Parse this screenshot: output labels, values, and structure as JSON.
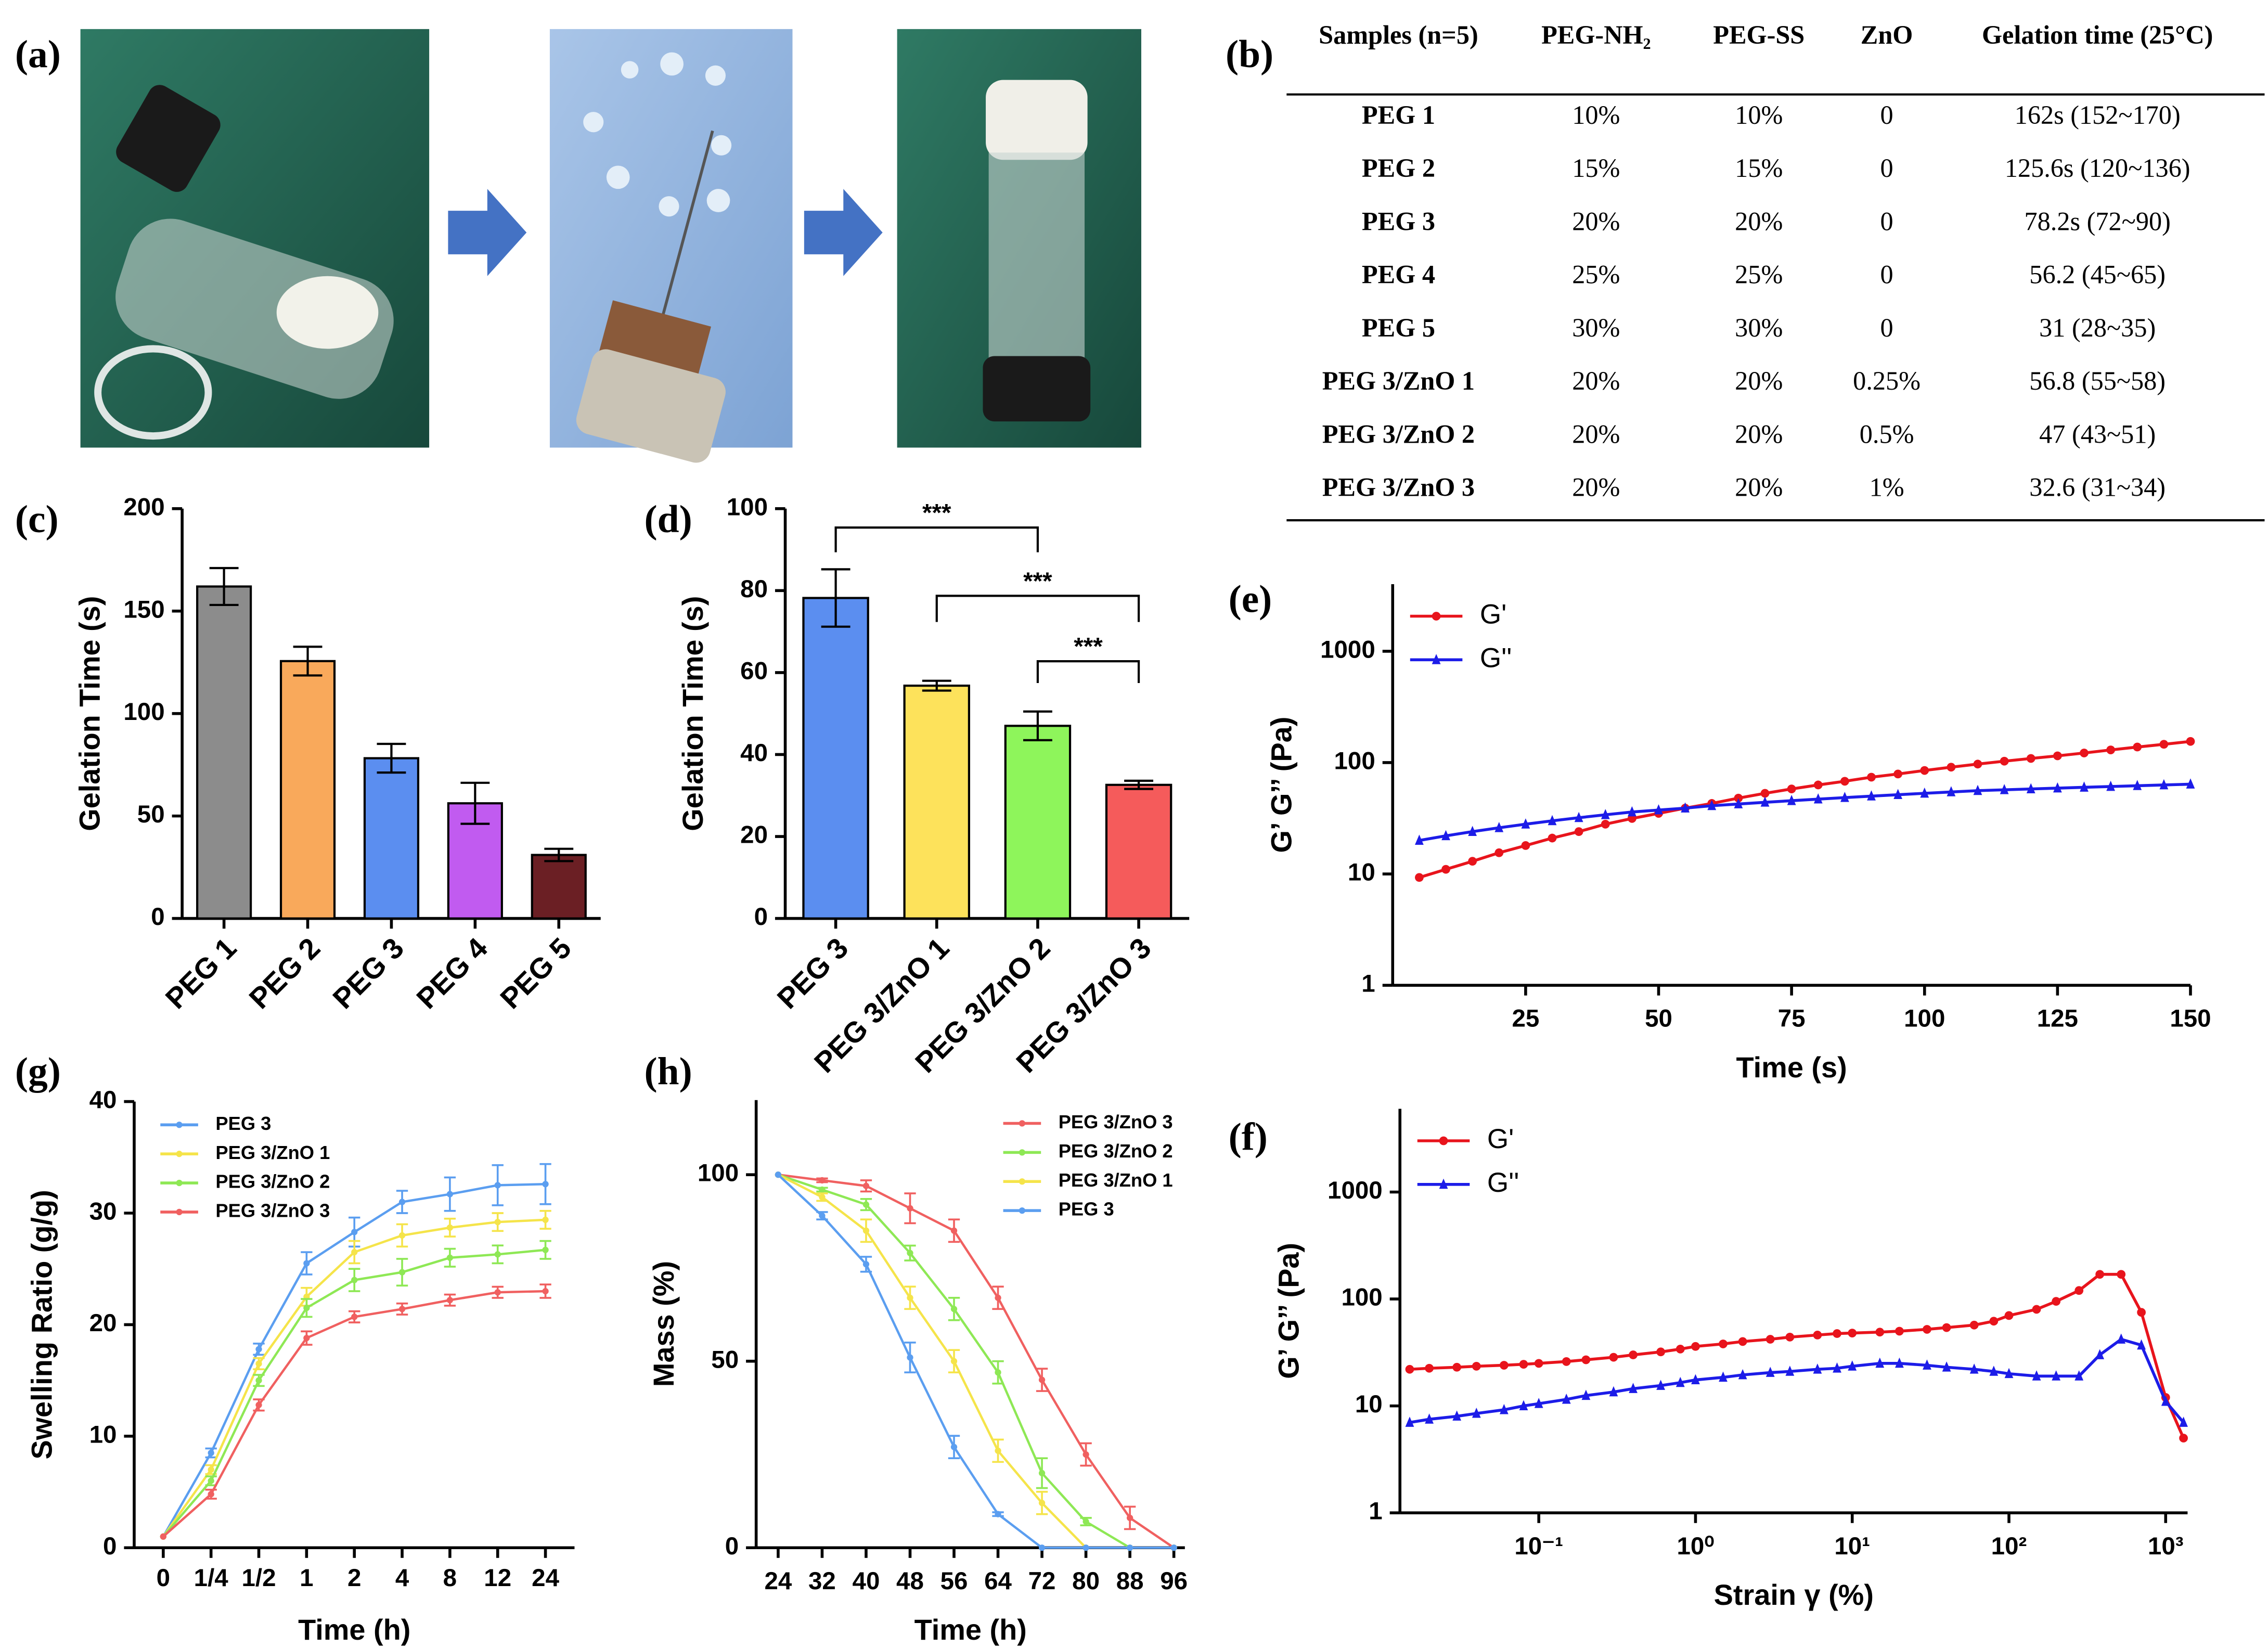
{
  "panel_labels": [
    "(a)",
    "(b)",
    "(c)",
    "(d)",
    "(e)",
    "(f)",
    "(g)",
    "(h)"
  ],
  "table": {
    "header": [
      "Samples (n=5)",
      "PEG-NH₂",
      "PEG-SS",
      "ZnO",
      "Gelation time (25°C)"
    ],
    "rows": [
      [
        "PEG 1",
        "10%",
        "10%",
        "0",
        "162s (152~170)"
      ],
      [
        "PEG 2",
        "15%",
        "15%",
        "0",
        "125.6s (120~136)"
      ],
      [
        "PEG 3",
        "20%",
        "20%",
        "0",
        "78.2s (72~90)"
      ],
      [
        "PEG 4",
        "25%",
        "25%",
        "0",
        "56.2 (45~65)"
      ],
      [
        "PEG 5",
        "30%",
        "30%",
        "0",
        "31 (28~35)"
      ],
      [
        "PEG 3/ZnO 1",
        "20%",
        "20%",
        "0.25%",
        "56.8 (55~58)"
      ],
      [
        "PEG 3/ZnO 2",
        "20%",
        "20%",
        "0.5%",
        "47 (43~51)"
      ],
      [
        "PEG 3/ZnO 3",
        "20%",
        "20%",
        "1%",
        "32.6 (31~34)"
      ]
    ]
  },
  "chart_data": [
    {
      "type": "bar",
      "ylabel": "Gelation Time (s)",
      "categories": [
        "PEG 1",
        "PEG 2",
        "PEG 3",
        "PEG 4",
        "PEG 5"
      ],
      "values": [
        162,
        125.6,
        78.2,
        56.2,
        31
      ],
      "errors": [
        9,
        7,
        7,
        10,
        3
      ],
      "colors": [
        "#8c8c8c",
        "#f9a95b",
        "#5b8ef0",
        "#c15bf0",
        "#6b1f24"
      ],
      "ylim": [
        0,
        200
      ],
      "yticks": [
        0,
        50,
        100,
        150,
        200
      ]
    },
    {
      "type": "bar",
      "ylabel": "Gelation Time (s)",
      "categories": [
        "PEG 3",
        "PEG 3/ZnO 1",
        "PEG 3/ZnO 2",
        "PEG 3/ZnO 3"
      ],
      "values": [
        78.2,
        56.8,
        47,
        32.6
      ],
      "errors": [
        7,
        1.2,
        3.5,
        1
      ],
      "colors": [
        "#5b8ef0",
        "#fde25b",
        "#8ef55b",
        "#f55b5b"
      ],
      "ylim": [
        0,
        100
      ],
      "yticks": [
        0,
        20,
        40,
        60,
        80,
        100
      ],
      "annotations": [
        "***",
        "***",
        "***"
      ]
    },
    {
      "type": "line",
      "xlabel": "Time (s)",
      "ylabel": "G’ G’’ (Pa)",
      "yscale": "log",
      "legend": "upper left",
      "x": [
        5,
        10,
        15,
        20,
        25,
        30,
        35,
        40,
        45,
        50,
        55,
        60,
        65,
        70,
        75,
        80,
        85,
        90,
        95,
        100,
        105,
        110,
        115,
        120,
        125,
        130,
        135,
        140,
        145,
        150
      ],
      "xlim": [
        0,
        150
      ],
      "xticks": [
        25,
        50,
        75,
        100,
        125,
        150
      ],
      "ylim": [
        1,
        4000
      ],
      "yticks": [
        1,
        10,
        100,
        1000
      ],
      "series": [
        {
          "name": "G'",
          "color": "#e8141c",
          "marker": "circle",
          "values": [
            9.3,
            11,
            13,
            15.5,
            18,
            21,
            24,
            28,
            31.5,
            35,
            39,
            43,
            48,
            53,
            58,
            63,
            68,
            74,
            79,
            85,
            91,
            97,
            103,
            109,
            115,
            122,
            130,
            138,
            146,
            155
          ]
        },
        {
          "name": "G''",
          "color": "#1c1ce8",
          "marker": "triangle",
          "values": [
            20,
            22,
            24,
            26,
            28,
            30,
            32,
            34,
            36,
            37.5,
            39,
            41,
            42.5,
            44,
            45.5,
            47,
            48.5,
            50,
            51.5,
            53,
            54.5,
            56,
            57,
            58,
            59,
            60,
            61,
            62,
            63,
            64
          ]
        }
      ]
    },
    {
      "type": "line",
      "xlabel": "Strain γ (%)",
      "ylabel": "G’ G’’ (Pa)",
      "xscale": "log",
      "yscale": "log",
      "legend": "upper left",
      "x": [
        0.015,
        0.02,
        0.03,
        0.04,
        0.06,
        0.08,
        0.1,
        0.15,
        0.2,
        0.3,
        0.4,
        0.6,
        0.8,
        1,
        1.5,
        2,
        3,
        4,
        6,
        8,
        10,
        15,
        20,
        30,
        40,
        60,
        80,
        100,
        150,
        200,
        280,
        380,
        520,
        700,
        1000,
        1300
      ],
      "xlim": [
        0.013,
        1380
      ],
      "xticks": [
        {
          "value": 0.1,
          "label": "10⁻¹"
        },
        {
          "value": 1,
          "label": "10⁰"
        },
        {
          "value": 10,
          "label": "10¹"
        },
        {
          "value": 100,
          "label": "10²"
        },
        {
          "value": 1000,
          "label": "10³"
        }
      ],
      "ylim": [
        1,
        6000
      ],
      "yticks": [
        1,
        10,
        100,
        1000
      ],
      "series": [
        {
          "name": "G'",
          "color": "#e8141c",
          "marker": "circle",
          "values": [
            22,
            22.5,
            23,
            23.5,
            24,
            24.5,
            25,
            26,
            27,
            28.5,
            30,
            32,
            34,
            36,
            38,
            40,
            42,
            44,
            46,
            47.5,
            48,
            49,
            50,
            52,
            54,
            57,
            62,
            70,
            80,
            95,
            120,
            170,
            170,
            75,
            12,
            5
          ]
        },
        {
          "name": "G''",
          "color": "#1c1ce8",
          "marker": "triangle",
          "values": [
            7,
            7.5,
            8,
            8.5,
            9.2,
            10,
            10.5,
            11.5,
            12.5,
            13.5,
            14.5,
            15.5,
            16.5,
            17.5,
            18.5,
            19.5,
            20.5,
            21,
            22,
            22.5,
            23.5,
            25,
            25,
            24,
            23,
            22,
            21,
            20,
            19,
            19,
            19,
            30,
            42,
            37,
            11,
            7
          ]
        }
      ]
    },
    {
      "type": "line",
      "xlabel": "Time (h)",
      "ylabel": "Swelling Ratio (g/g)",
      "legend": "upper left",
      "categories": [
        "0",
        "1/4",
        "1/2",
        "1",
        "2",
        "4",
        "8",
        "12",
        "24"
      ],
      "ylim": [
        0,
        40
      ],
      "yticks": [
        0,
        10,
        20,
        30,
        40
      ],
      "series": [
        {
          "name": "PEG 3",
          "color": "#5b9ef0",
          "marker": "circle",
          "values": [
            1,
            8.5,
            17.8,
            25.5,
            28.3,
            31,
            31.7,
            32.5,
            32.6
          ],
          "errors": [
            0,
            0.4,
            0.5,
            1,
            1.3,
            1,
            1.5,
            1.8,
            1.8
          ]
        },
        {
          "name": "PEG 3/ZnO 1",
          "color": "#f5e44a",
          "marker": "circle",
          "values": [
            1,
            7,
            16.5,
            22.5,
            26.5,
            28,
            28.7,
            29.2,
            29.4
          ],
          "errors": [
            0,
            0.4,
            0.5,
            0.8,
            1,
            1,
            0.8,
            0.8,
            0.8
          ]
        },
        {
          "name": "PEG 3/ZnO 2",
          "color": "#8ee855",
          "marker": "circle",
          "values": [
            1,
            6,
            15,
            21.5,
            24,
            24.7,
            26,
            26.3,
            26.7
          ],
          "errors": [
            0,
            0.4,
            0.5,
            0.8,
            1,
            1.2,
            0.8,
            0.8,
            0.8
          ]
        },
        {
          "name": "PEG 3/ZnO 3",
          "color": "#f06060",
          "marker": "circle",
          "values": [
            1,
            4.8,
            12.8,
            18.8,
            20.7,
            21.4,
            22.2,
            22.9,
            23
          ],
          "errors": [
            0,
            0.4,
            0.5,
            0.6,
            0.5,
            0.5,
            0.5,
            0.5,
            0.6
          ]
        }
      ]
    },
    {
      "type": "line",
      "xlabel": "Time (h)",
      "ylabel": "Mass (%)",
      "legend": "upper right",
      "x": [
        24,
        32,
        40,
        48,
        56,
        64,
        72,
        80,
        88,
        96
      ],
      "xlim": [
        20,
        98
      ],
      "xticks": [
        24,
        32,
        40,
        48,
        56,
        64,
        72,
        80,
        88,
        96
      ],
      "ylim": [
        0,
        120
      ],
      "yticks": [
        0,
        50,
        100
      ],
      "series": [
        {
          "name": "PEG 3/ZnO 3",
          "color": "#f06060",
          "marker": "circle",
          "values": [
            100,
            98.5,
            97,
            91,
            85,
            67,
            45,
            25,
            8,
            0
          ],
          "errors": [
            0,
            0.5,
            1.5,
            4,
            3,
            3,
            3,
            3,
            3,
            0
          ]
        },
        {
          "name": "PEG 3/ZnO 2",
          "color": "#8ee855",
          "marker": "circle",
          "values": [
            100,
            96,
            92,
            79,
            64,
            47,
            20,
            7,
            0,
            0
          ],
          "errors": [
            0,
            0.5,
            1.5,
            2,
            3,
            3,
            4,
            1,
            0,
            0
          ]
        },
        {
          "name": "PEG 3/ZnO 1",
          "color": "#f5e44a",
          "marker": "circle",
          "values": [
            100,
            94,
            85,
            67,
            50,
            26,
            12,
            0,
            0,
            0
          ],
          "errors": [
            0,
            1,
            3,
            3,
            3,
            3,
            3,
            0,
            0,
            0
          ]
        },
        {
          "name": "PEG 3",
          "color": "#5b9ef0",
          "marker": "circle",
          "values": [
            100,
            89,
            76,
            51,
            27,
            9,
            0,
            0,
            0,
            0
          ],
          "errors": [
            0,
            1,
            2,
            4,
            3,
            0.5,
            0,
            0,
            0,
            0
          ]
        }
      ]
    }
  ]
}
